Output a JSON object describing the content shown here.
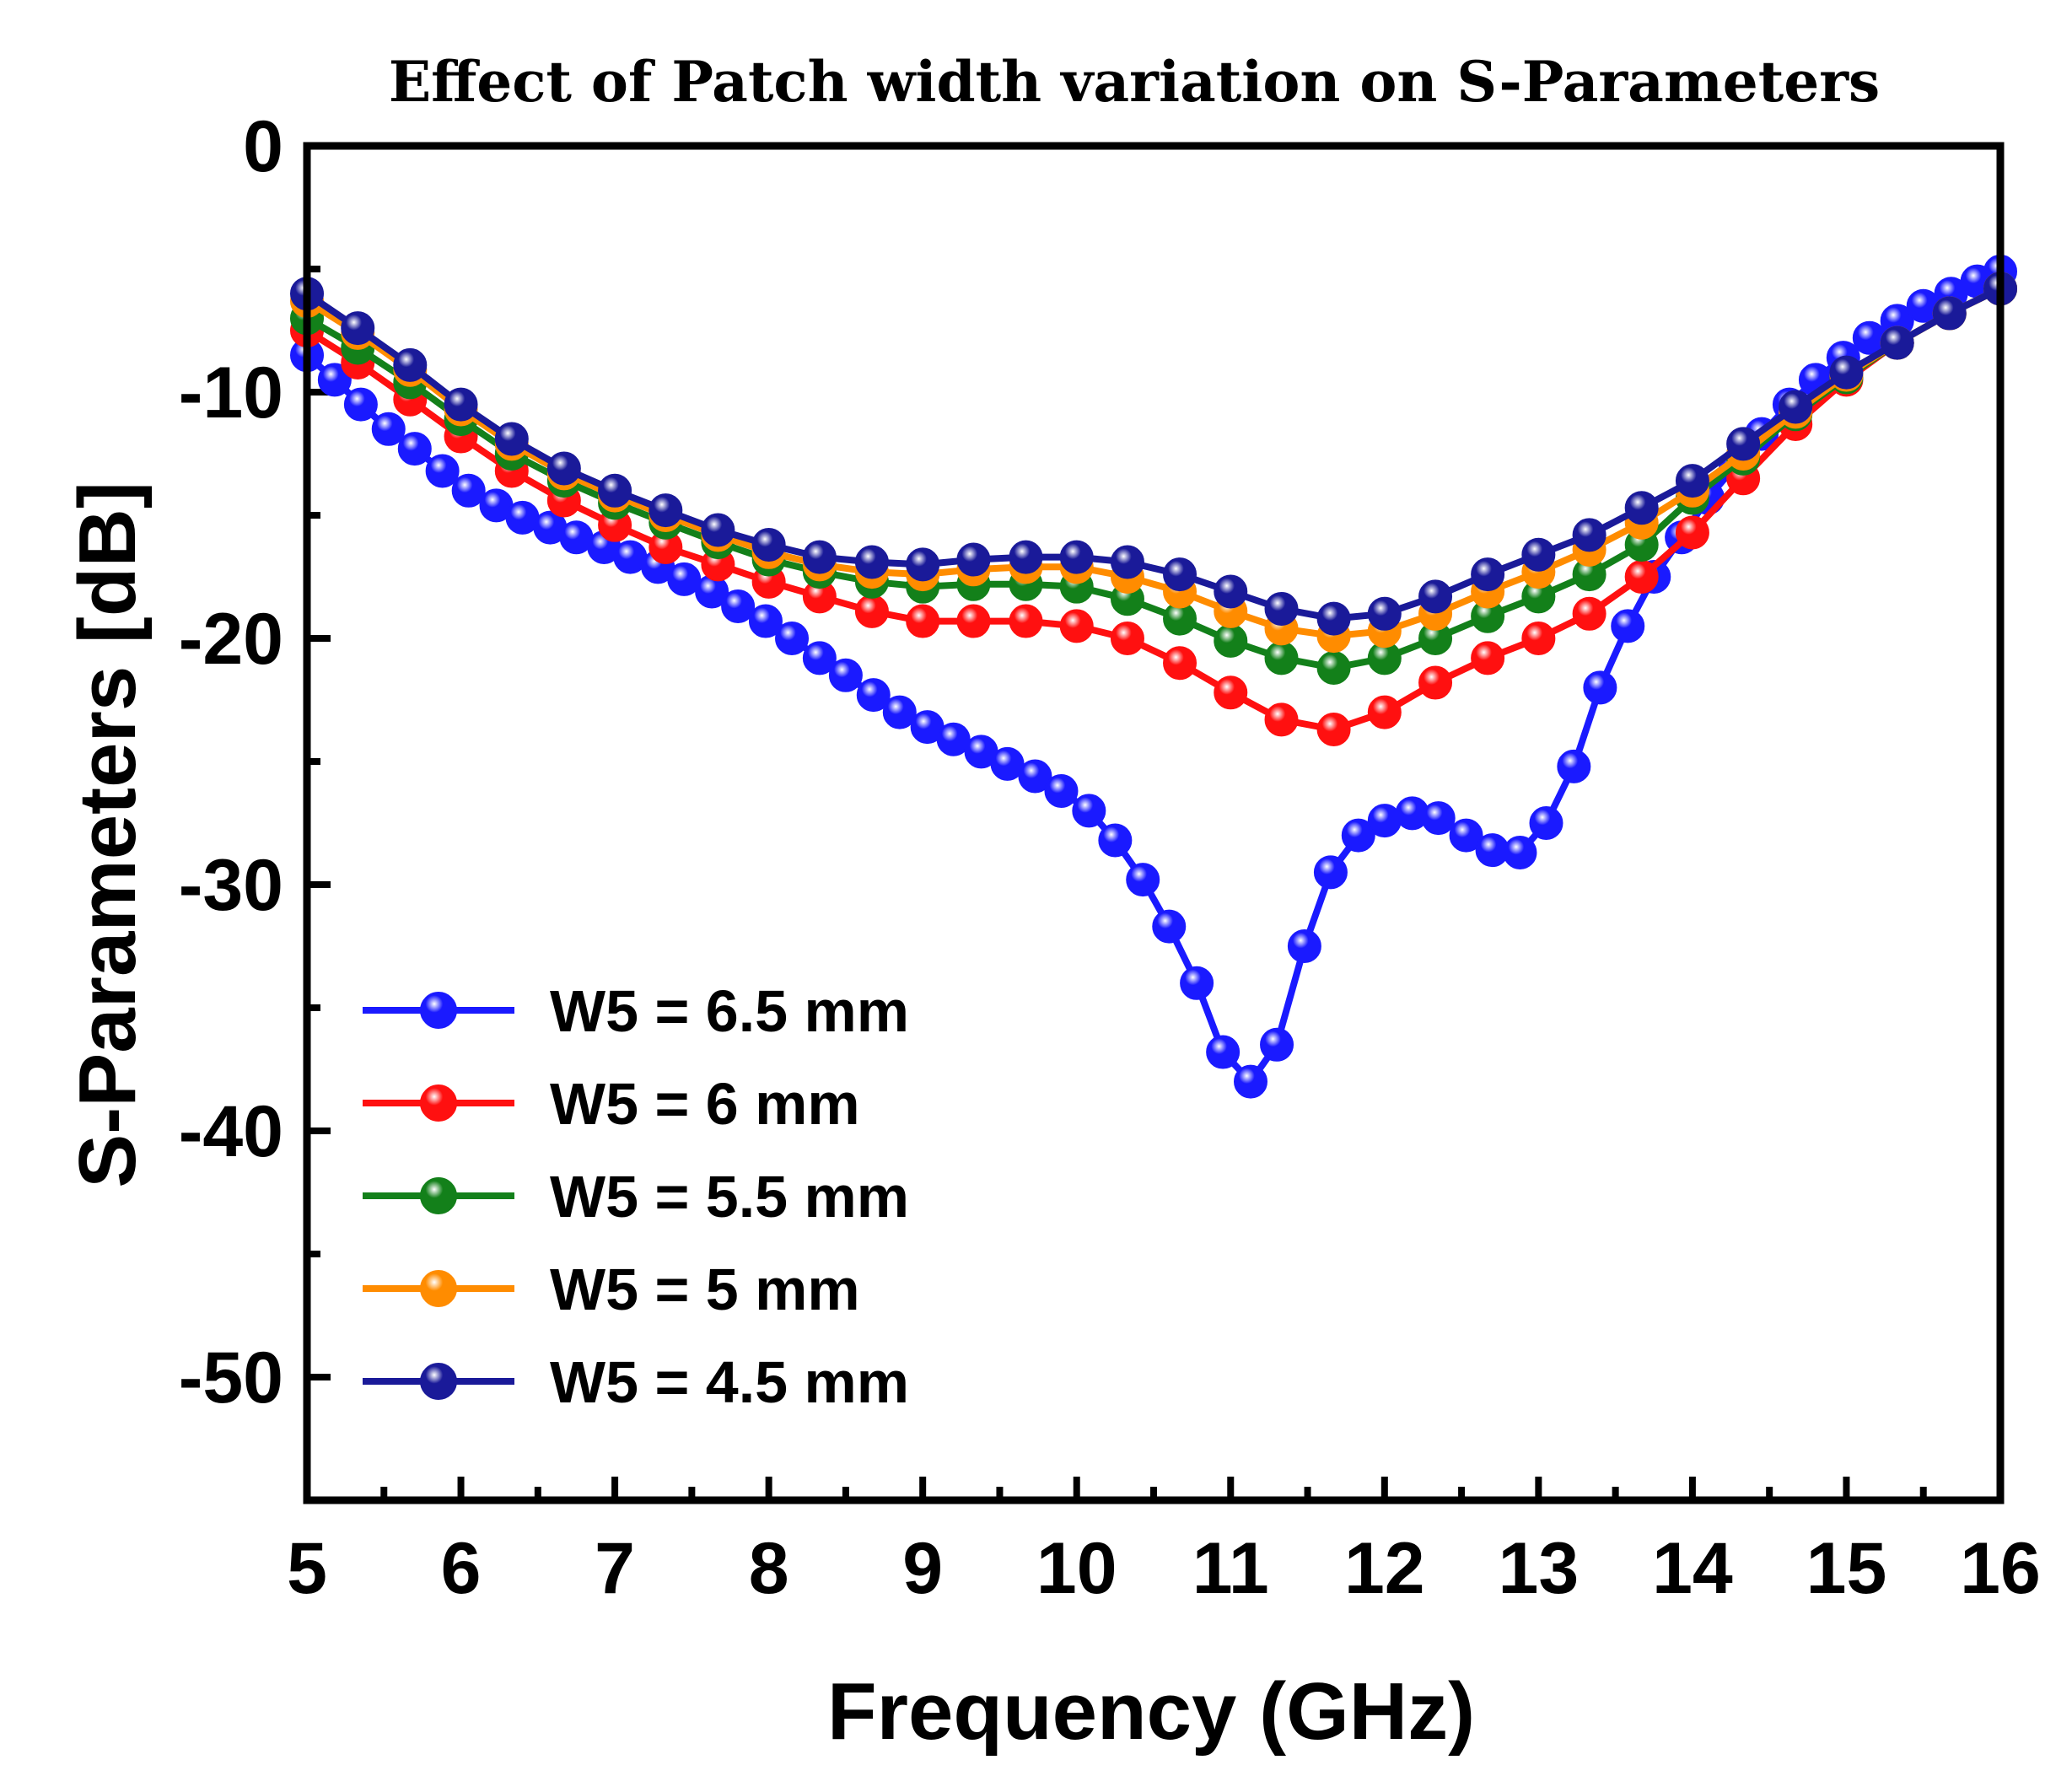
{
  "chart_data": {
    "type": "line",
    "title": "Effect of Patch width variation on S-Parameters",
    "xlabel": "Frequency (GHz)",
    "ylabel": "S-Parameters [dB]",
    "xlim": [
      5,
      16
    ],
    "ylim": [
      -55,
      0
    ],
    "xticks": [
      5,
      6,
      7,
      8,
      9,
      10,
      11,
      12,
      13,
      14,
      15,
      16
    ],
    "yticks": [
      0,
      -10,
      -20,
      -30,
      -40,
      -50
    ],
    "legend_position": "bottom-left",
    "series": [
      {
        "name": "W5 = 6.5 mm",
        "color": "#1a1aff",
        "x": [
          5,
          5.18,
          5.35,
          5.53,
          5.7,
          5.88,
          6.05,
          6.23,
          6.4,
          6.58,
          6.75,
          6.93,
          7.1,
          7.28,
          7.45,
          7.63,
          7.8,
          7.98,
          8.15,
          8.33,
          8.5,
          8.68,
          8.85,
          9.03,
          9.2,
          9.38,
          9.55,
          9.73,
          9.9,
          10.08,
          10.25,
          10.43,
          10.6,
          10.78,
          10.95,
          11.13,
          11.3,
          11.48,
          11.65,
          11.83,
          12.0,
          12.18,
          12.35,
          12.53,
          12.7,
          12.88,
          13.05,
          13.23,
          13.4,
          13.58,
          13.75,
          13.93,
          14.1,
          14.28,
          14.45,
          14.63,
          14.8,
          14.98,
          15.15,
          15.33,
          15.5,
          15.68,
          15.85,
          16
        ],
        "values": [
          -8.5,
          -9.5,
          -10.5,
          -11.5,
          -12.3,
          -13.2,
          -14.0,
          -14.6,
          -15.1,
          -15.5,
          -15.9,
          -16.3,
          -16.7,
          -17.1,
          -17.6,
          -18.1,
          -18.7,
          -19.3,
          -20.0,
          -20.8,
          -21.5,
          -22.3,
          -23.0,
          -23.6,
          -24.1,
          -24.6,
          -25.1,
          -25.6,
          -26.2,
          -27.0,
          -28.2,
          -29.8,
          -31.7,
          -34.0,
          -36.8,
          -38.0,
          -36.5,
          -32.5,
          -29.5,
          -28.0,
          -27.4,
          -27.1,
          -27.3,
          -28.0,
          -28.6,
          -28.7,
          -27.5,
          -25.2,
          -22.0,
          -19.5,
          -17.5,
          -15.9,
          -14.3,
          -13.0,
          -11.7,
          -10.5,
          -9.5,
          -8.6,
          -7.8,
          -7.1,
          -6.5,
          -6.0,
          -5.5,
          -5.1
        ]
      },
      {
        "name": "W5 = 6 mm",
        "color": "#ff1010",
        "x": [
          5,
          5.33,
          5.67,
          6.0,
          6.33,
          6.67,
          7.0,
          7.33,
          7.67,
          8.0,
          8.33,
          8.67,
          9.0,
          9.33,
          9.67,
          10.0,
          10.33,
          10.67,
          11.0,
          11.33,
          11.67,
          12.0,
          12.33,
          12.67,
          13.0,
          13.33,
          13.67,
          14.0,
          14.33,
          14.67,
          15.0,
          15.33,
          15.67,
          16
        ],
        "values": [
          -7.5,
          -8.8,
          -10.3,
          -11.8,
          -13.2,
          -14.4,
          -15.4,
          -16.3,
          -17.0,
          -17.7,
          -18.3,
          -18.9,
          -19.3,
          -19.3,
          -19.3,
          -19.5,
          -20.0,
          -21.0,
          -22.2,
          -23.3,
          -23.7,
          -23.0,
          -21.8,
          -20.8,
          -20.0,
          -19.0,
          -17.5,
          -15.7,
          -13.5,
          -11.3,
          -9.5,
          -8.0,
          -6.8,
          -5.8
        ]
      },
      {
        "name": "W5 = 5.5 mm",
        "color": "#13801a",
        "x": [
          5,
          5.33,
          5.67,
          6.0,
          6.33,
          6.67,
          7.0,
          7.33,
          7.67,
          8.0,
          8.33,
          8.67,
          9.0,
          9.33,
          9.67,
          10.0,
          10.33,
          10.67,
          11.0,
          11.33,
          11.67,
          12.0,
          12.33,
          12.67,
          13.0,
          13.33,
          13.67,
          14.0,
          14.33,
          14.67,
          15.0,
          15.33,
          15.67,
          16
        ],
        "values": [
          -7.0,
          -8.2,
          -9.6,
          -11.1,
          -12.5,
          -13.6,
          -14.5,
          -15.3,
          -16.1,
          -16.8,
          -17.3,
          -17.7,
          -17.9,
          -17.8,
          -17.8,
          -17.9,
          -18.4,
          -19.2,
          -20.1,
          -20.8,
          -21.2,
          -20.8,
          -20.0,
          -19.1,
          -18.3,
          -17.4,
          -16.2,
          -14.3,
          -12.7,
          -10.9,
          -9.4,
          -8.0,
          -6.8,
          -5.8
        ]
      },
      {
        "name": "W5 = 5 mm",
        "color": "#ff8c00",
        "x": [
          5,
          5.33,
          5.67,
          6.0,
          6.33,
          6.67,
          7.0,
          7.33,
          7.67,
          8.0,
          8.33,
          8.67,
          9.0,
          9.33,
          9.67,
          10.0,
          10.33,
          10.67,
          11.0,
          11.33,
          11.67,
          12.0,
          12.33,
          12.67,
          13.0,
          13.33,
          13.67,
          14.0,
          14.33,
          14.67,
          15.0,
          15.33,
          15.67,
          16
        ],
        "values": [
          -6.3,
          -7.6,
          -9.1,
          -10.7,
          -12.1,
          -13.3,
          -14.2,
          -15.0,
          -15.8,
          -16.5,
          -17.0,
          -17.3,
          -17.4,
          -17.2,
          -17.1,
          -17.1,
          -17.5,
          -18.1,
          -18.9,
          -19.6,
          -19.9,
          -19.7,
          -19.0,
          -18.1,
          -17.3,
          -16.4,
          -15.3,
          -14.0,
          -12.5,
          -10.8,
          -9.3,
          -8.0,
          -6.8,
          -5.8
        ]
      },
      {
        "name": "W5 = 4.5 mm",
        "color": "#1a1a99",
        "x": [
          5,
          5.33,
          5.67,
          6.0,
          6.33,
          6.67,
          7.0,
          7.33,
          7.67,
          8.0,
          8.33,
          8.67,
          9.0,
          9.33,
          9.67,
          10.0,
          10.33,
          10.67,
          11.0,
          11.33,
          11.67,
          12.0,
          12.33,
          12.67,
          13.0,
          13.33,
          13.67,
          14.0,
          14.33,
          14.67,
          15.0,
          15.33,
          15.67,
          16
        ],
        "values": [
          -6.0,
          -7.4,
          -8.9,
          -10.5,
          -11.9,
          -13.1,
          -14.0,
          -14.8,
          -15.6,
          -16.2,
          -16.7,
          -16.9,
          -17.0,
          -16.8,
          -16.7,
          -16.7,
          -16.9,
          -17.4,
          -18.1,
          -18.8,
          -19.2,
          -19.0,
          -18.3,
          -17.4,
          -16.6,
          -15.8,
          -14.7,
          -13.6,
          -12.1,
          -10.6,
          -9.2,
          -8.0,
          -6.8,
          -5.8
        ]
      }
    ]
  }
}
